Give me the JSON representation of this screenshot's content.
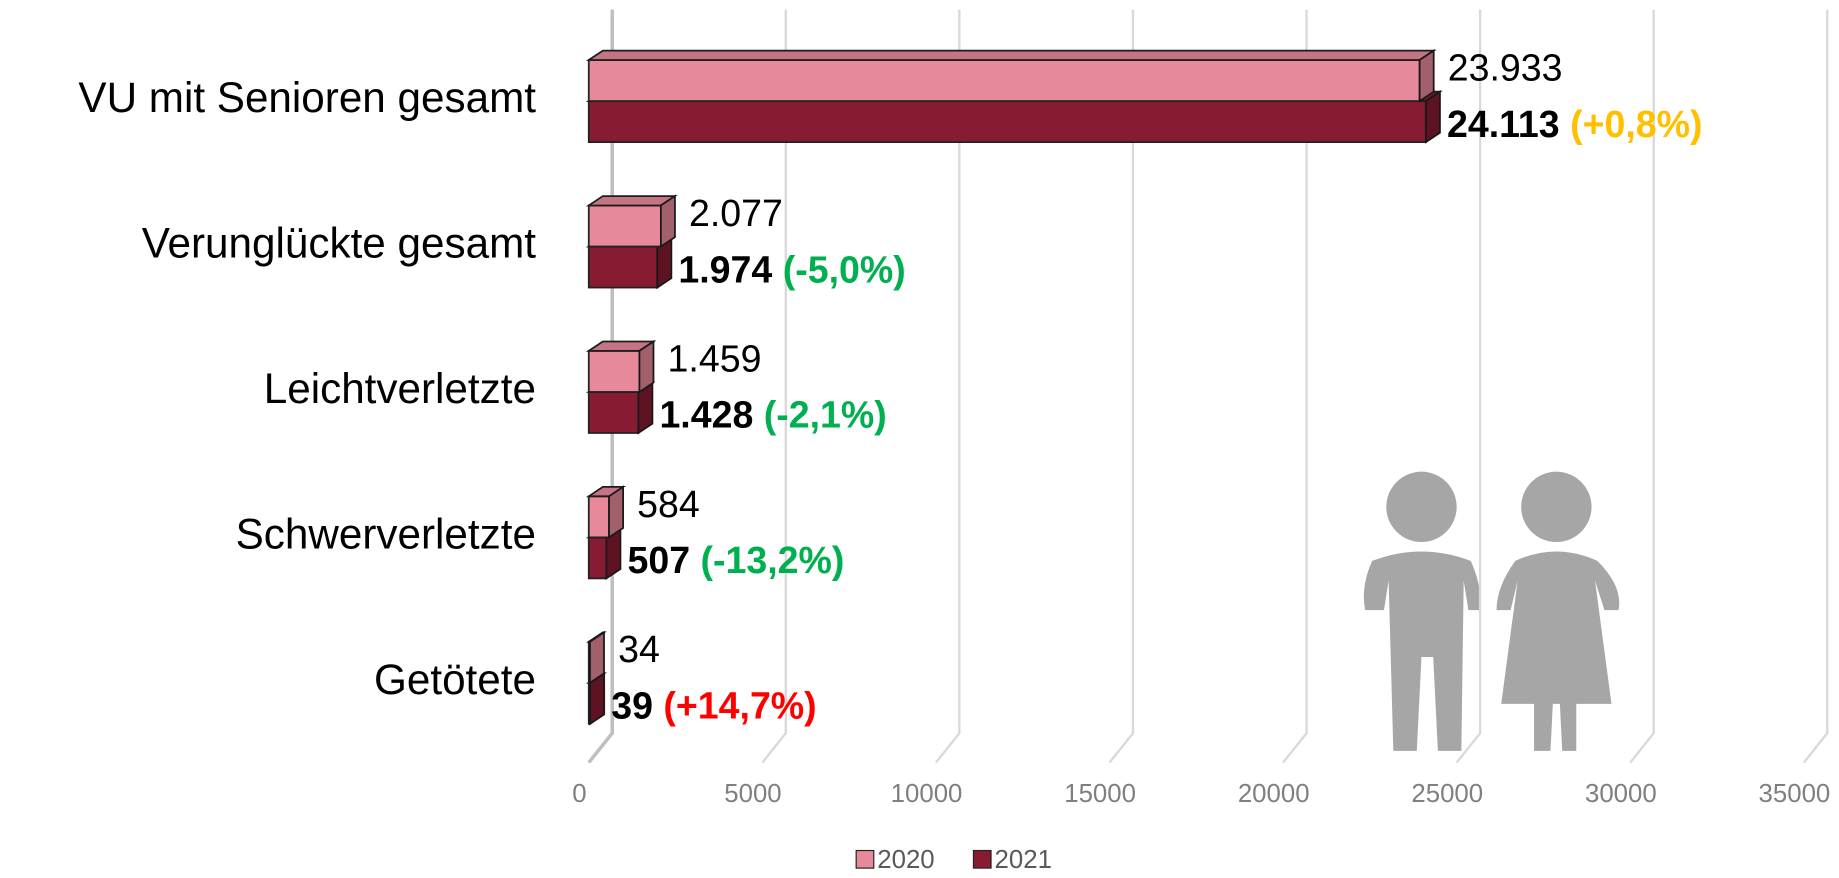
{
  "chart_data": {
    "type": "bar3d_horizontal",
    "categories": [
      "VU mit Senioren gesamt",
      "Verunglückte gesamt",
      "Leichtverletzte",
      "Schwerverletzte",
      "Getötete"
    ],
    "series": [
      {
        "name": "2020",
        "color": "#e8899b",
        "values": [
          23933,
          2077,
          1459,
          584,
          34
        ],
        "value_labels": [
          "23.933",
          "2.077",
          "1.459",
          "584",
          "34"
        ]
      },
      {
        "name": "2021",
        "color": "#861b32",
        "values": [
          24113,
          1974,
          1428,
          507,
          39
        ],
        "value_labels": [
          "24.113",
          "1.974",
          "1.428",
          "507",
          "39"
        ]
      }
    ],
    "changes": [
      {
        "label": "(+0,8%)",
        "color": "#ffc000"
      },
      {
        "label": "(-5,0%)",
        "color": "#00b050"
      },
      {
        "label": "(-2,1%)",
        "color": "#00b050"
      },
      {
        "label": "(-13,2%)",
        "color": "#00b050"
      },
      {
        "label": "(+14,7%)",
        "color": "#ff0000"
      }
    ],
    "xlim": [
      0,
      35000
    ],
    "xticks": [
      0,
      5000,
      10000,
      15000,
      20000,
      25000,
      30000,
      35000
    ],
    "grid": true,
    "legend": "bottom"
  }
}
